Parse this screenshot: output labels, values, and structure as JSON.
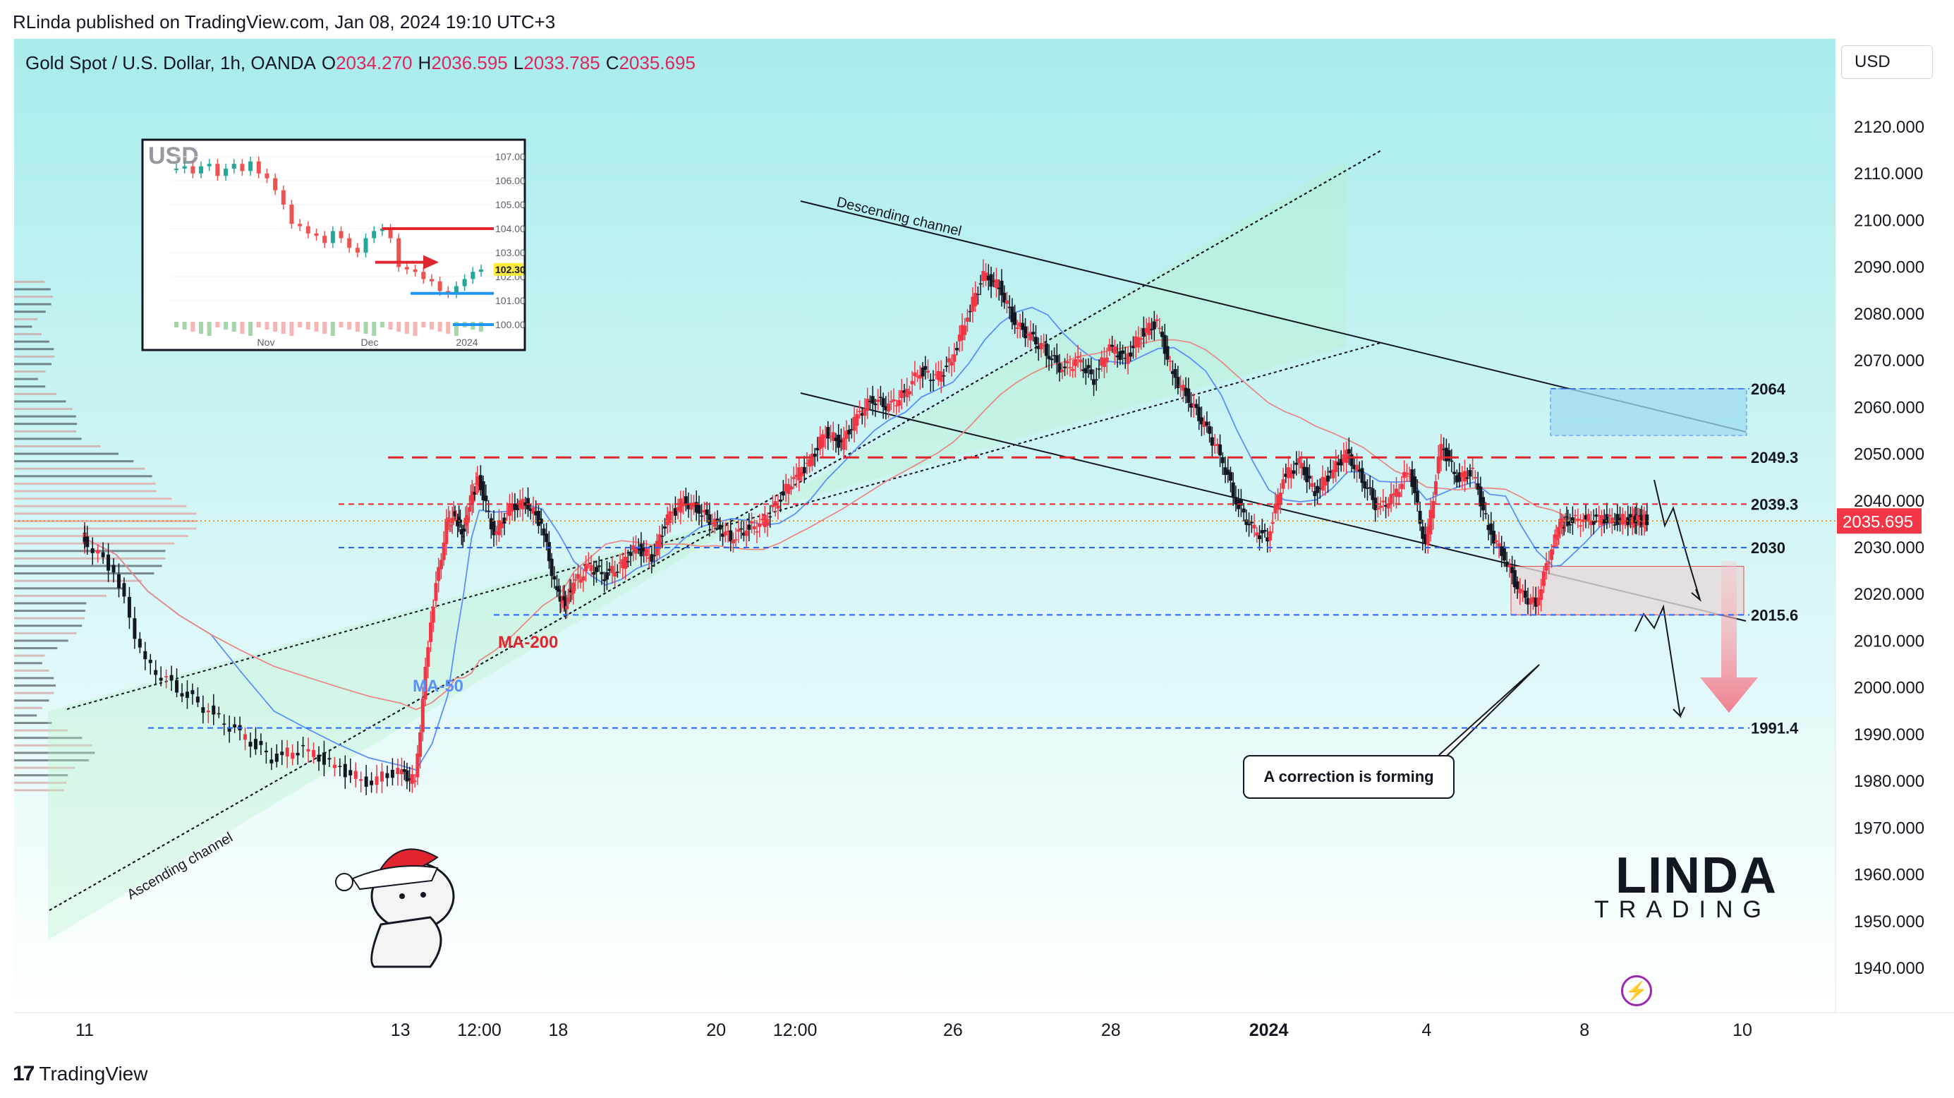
{
  "header": {
    "publisher": "RLinda published on TradingView.com, Jan 08, 2024 19:10 UTC+3"
  },
  "symbol": {
    "name": "Gold Spot / U.S. Dollar, 1h, OANDA",
    "open_label": "O",
    "open": "2034.270",
    "high_label": "H",
    "high": "2036.595",
    "low_label": "L",
    "low": "2033.785",
    "close_label": "C",
    "close": "2035.695"
  },
  "currency_button": "USD",
  "footer": {
    "brand": "TradingView"
  },
  "colors": {
    "background_top": "#a8ecec",
    "background_bottom": "#ffffff",
    "up": "#f23645",
    "down": "#131722",
    "ma50": "#5b8ff9",
    "ma200": "#e88a8a",
    "resistance": "#e0252f",
    "support": "#2962ff",
    "price_tag": "#f57c00"
  },
  "chart_data": {
    "type": "line",
    "title": "",
    "ylim": [
      1935,
      2140
    ],
    "y_ticks": [
      "1940.000",
      "1950.000",
      "1960.000",
      "1970.000",
      "1980.000",
      "1990.000",
      "2000.000",
      "2010.000",
      "2020.000",
      "2030.000",
      "2040.000",
      "2050.000",
      "2060.000",
      "2070.000",
      "2080.000",
      "2090.000",
      "2100.000",
      "2110.000",
      "2120.000"
    ],
    "x_ticks": [
      {
        "label": "11",
        "i": 0
      },
      {
        "label": "13",
        "i": 2
      },
      {
        "label": "12:00",
        "i": 2.5
      },
      {
        "label": "18",
        "i": 3
      },
      {
        "label": "20",
        "i": 4
      },
      {
        "label": "12:00",
        "i": 4.5
      },
      {
        "label": "26",
        "i": 5.5
      },
      {
        "label": "28",
        "i": 6.5
      },
      {
        "label": "2024",
        "i": 7.5
      },
      {
        "label": "4",
        "i": 8.5
      },
      {
        "label": "8",
        "i": 9.5
      },
      {
        "label": "10",
        "i": 10.5
      }
    ],
    "price_path_note": "",
    "series": [
      {
        "name": "",
        "x": [
          0,
          0.2,
          0.4,
          0.6,
          0.8,
          1.0,
          1.2,
          1.4,
          1.6,
          1.8,
          2.0,
          2.1,
          2.2,
          2.3,
          2.35,
          2.4,
          2.45,
          2.5,
          2.6,
          2.7,
          2.8,
          2.9,
          3.0,
          3.05,
          3.1,
          3.2,
          3.3,
          3.4,
          3.5,
          3.6,
          3.7,
          3.8,
          3.9,
          4.0,
          4.1,
          4.2,
          4.3,
          4.4,
          4.5,
          4.6,
          4.7,
          4.8,
          4.9,
          5.0,
          5.1,
          5.2,
          5.3,
          5.4,
          5.5,
          5.6,
          5.7,
          5.8,
          5.9,
          6.0,
          6.1,
          6.2,
          6.3,
          6.4,
          6.5,
          6.6,
          6.7,
          6.8,
          6.9,
          7.0,
          7.1,
          7.2,
          7.3,
          7.4,
          7.5,
          7.6,
          7.7,
          7.8,
          7.9,
          8.0,
          8.1,
          8.2,
          8.3,
          8.4,
          8.5,
          8.6,
          8.7,
          8.8,
          8.9,
          9.0,
          9.1,
          9.2,
          9.3,
          9.35,
          9.4,
          9.5,
          9.6,
          9.7,
          9.8,
          9.85,
          9.9
        ],
        "values": [
          2032,
          2025,
          2005,
          2000,
          1995,
          1990,
          1985,
          1987,
          1983,
          1980,
          1982,
          1980,
          2015,
          2035,
          2037,
          2033,
          2040,
          2045,
          2033,
          2038,
          2040,
          2035,
          2020,
          2018,
          2022,
          2026,
          2024,
          2026,
          2030,
          2028,
          2036,
          2040,
          2038,
          2035,
          2032,
          2034,
          2035,
          2040,
          2045,
          2048,
          2055,
          2052,
          2058,
          2062,
          2060,
          2063,
          2068,
          2066,
          2070,
          2080,
          2088,
          2086,
          2078,
          2075,
          2072,
          2068,
          2070,
          2066,
          2073,
          2070,
          2076,
          2078,
          2067,
          2062,
          2056,
          2050,
          2040,
          2034,
          2032,
          2045,
          2048,
          2042,
          2046,
          2050,
          2045,
          2038,
          2041,
          2047,
          2030,
          2052,
          2045,
          2046,
          2034,
          2028,
          2020,
          2018,
          2030,
          2035,
          2035.695,
          2036,
          2036,
          2036,
          2036,
          2036,
          2036
        ]
      }
    ],
    "levels": [
      {
        "value": 2064,
        "label": "2064"
      },
      {
        "value": 2049.3,
        "label": "2049.3"
      },
      {
        "value": 2039.3,
        "label": "2039.3"
      },
      {
        "value": 2030,
        "label": "2030"
      },
      {
        "value": 2015.6,
        "label": "2015.6"
      },
      {
        "value": 1991.4,
        "label": "1991.4"
      }
    ],
    "current_price": "2035.695",
    "annotations": {
      "ascending_channel": "Ascending channel",
      "descending_channel": "Descending channel",
      "ma50": "MA-50",
      "ma200": "MA-200",
      "correction": "A correction is forming"
    }
  },
  "inset": {
    "title": "USD",
    "y_ticks": [
      "107.00",
      "106.00",
      "105.00",
      "104.00",
      "103.00",
      "102.00",
      "101.00",
      "100.00"
    ],
    "x_ticks": [
      "Nov",
      "Dec",
      "2024"
    ],
    "price_tag": "102.30",
    "values": [
      106.5,
      106.6,
      106.3,
      106.6,
      106.7,
      106.2,
      106.5,
      106.7,
      106.4,
      106.8,
      106.3,
      106.1,
      105.6,
      105.0,
      104.2,
      104.1,
      103.8,
      103.7,
      103.4,
      103.9,
      103.6,
      103.2,
      103.0,
      103.6,
      103.9,
      104.0,
      103.6,
      102.4,
      102.3,
      102.2,
      101.9,
      101.8,
      101.4,
      101.3,
      101.6,
      101.9,
      102.2,
      102.3
    ]
  },
  "logo": {
    "big": "LINDA",
    "small": "TRADING"
  }
}
